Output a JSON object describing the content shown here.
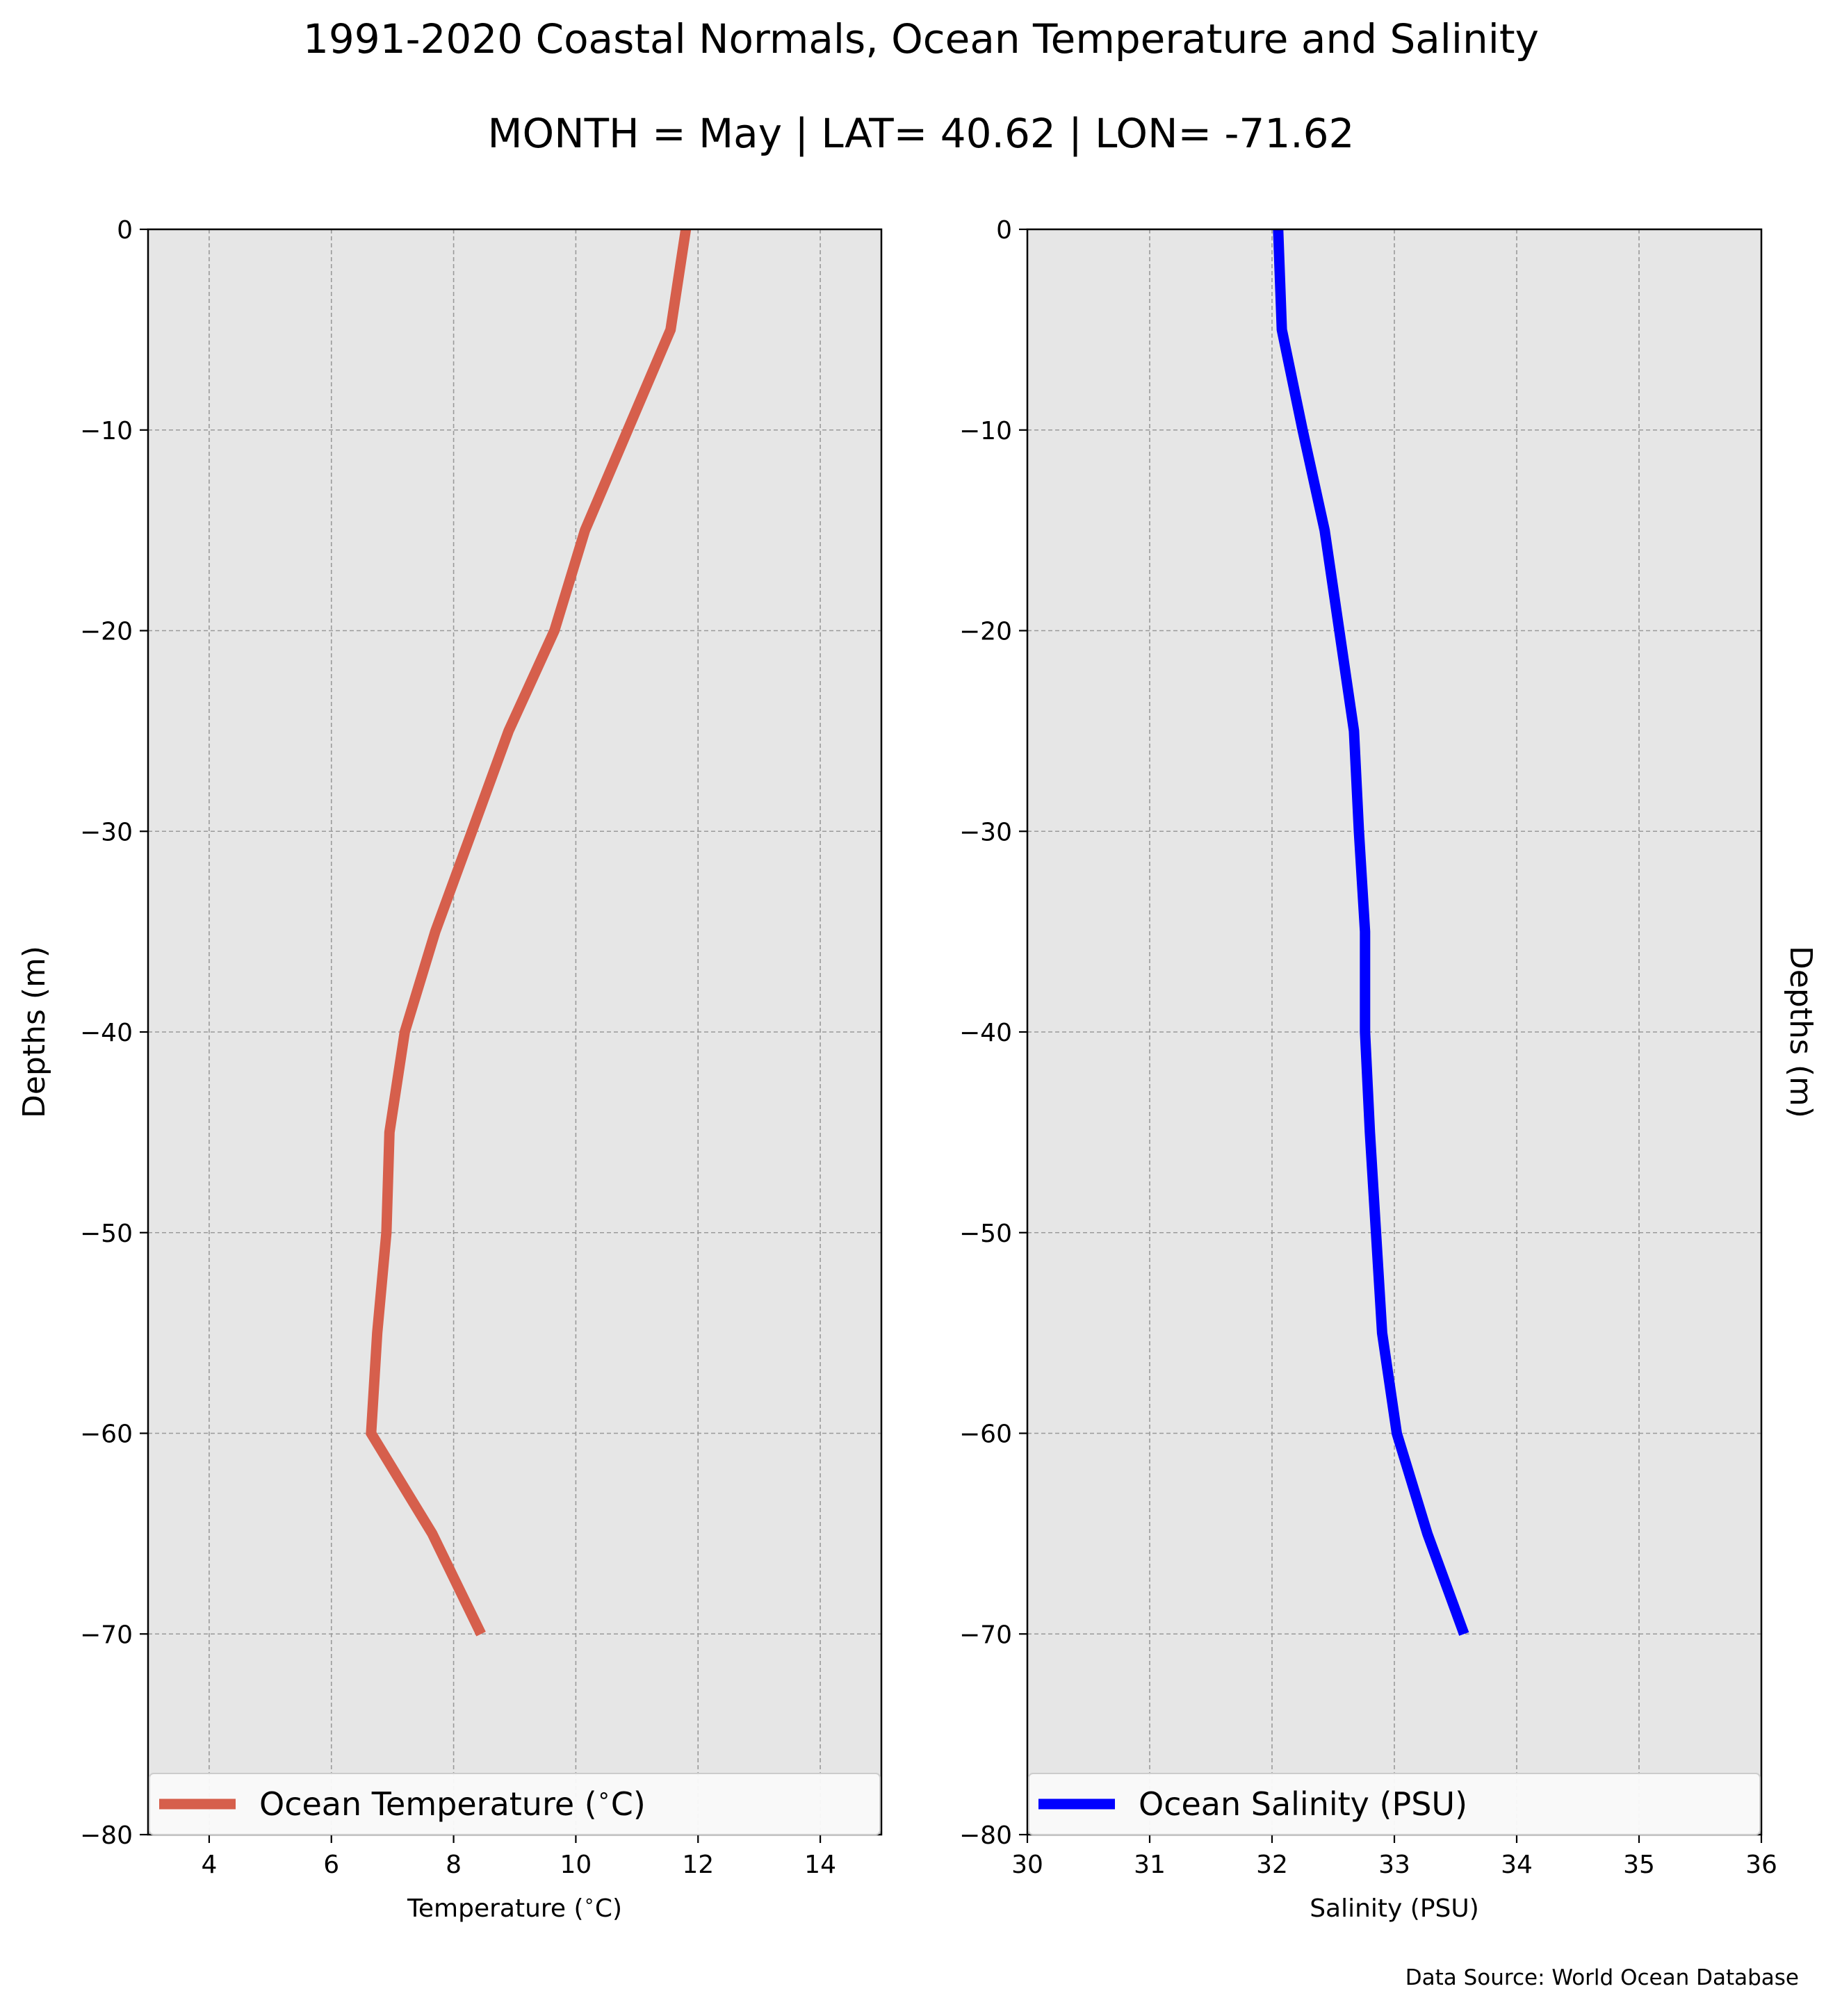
{
  "figure": {
    "title": "1991-2020 Coastal Normals, Ocean Temperature and Salinity",
    "subtitle": "MONTH = May | LAT= 40.62 | LON= -71.62",
    "source_note": "Data Source: World Ocean Database",
    "background": "#ffffff",
    "plot_background": "#e6e6e6",
    "grid_color": "#9a9a9a"
  },
  "chart_data": [
    {
      "type": "line",
      "xlabel": "Temperature ($^\\circ$C)",
      "xlabel_text": "Temperature (",
      "xlabel_sup": "∘",
      "xlabel_tail": "C)",
      "ylabel": "Depths (m)",
      "ylabel_side": "left",
      "xlim": [
        3,
        15
      ],
      "ylim": [
        -80,
        0
      ],
      "xticks": [
        4,
        6,
        8,
        10,
        12,
        14
      ],
      "xtick_labels": [
        "4",
        "6",
        "8",
        "10",
        "12",
        "14"
      ],
      "yticks": [
        0,
        -10,
        -20,
        -30,
        -40,
        -50,
        -60,
        -70,
        -80
      ],
      "ytick_labels": [
        "0",
        "−10",
        "−20",
        "−30",
        "−40",
        "−50",
        "−60",
        "−70",
        "−80"
      ],
      "grid": true,
      "legend_placement": "lower center",
      "series": [
        {
          "name": "Ocean Temperature ($^\\circ$C)",
          "legend_text": "Ocean Temperature (",
          "legend_sup": "∘",
          "legend_tail": "C)",
          "color": "#d65f4c",
          "x": [
            11.8,
            11.55,
            10.85,
            10.15,
            9.65,
            8.9,
            8.3,
            7.7,
            7.2,
            6.95,
            6.9,
            6.75,
            6.65,
            7.65,
            8.45
          ],
          "y": [
            0,
            -5,
            -10,
            -15,
            -20,
            -25,
            -30,
            -35,
            -40,
            -45,
            -50,
            -55,
            -60,
            -65,
            -70
          ]
        }
      ]
    },
    {
      "type": "line",
      "xlabel": "Salinity (PSU)",
      "ylabel": "Depths (m)",
      "ylabel_side": "right",
      "xlim": [
        30,
        36
      ],
      "ylim": [
        -80,
        0
      ],
      "xticks": [
        30,
        31,
        32,
        33,
        34,
        35,
        36
      ],
      "xtick_labels": [
        "30",
        "31",
        "32",
        "33",
        "34",
        "35",
        "36"
      ],
      "yticks": [
        0,
        -10,
        -20,
        -30,
        -40,
        -50,
        -60,
        -70,
        -80
      ],
      "ytick_labels": [
        "0",
        "−10",
        "−20",
        "−30",
        "−40",
        "−50",
        "−60",
        "−70",
        "−80"
      ],
      "grid": true,
      "legend_placement": "lower center",
      "series": [
        {
          "name": "Ocean Salinity (PSU)",
          "legend_text": "Ocean Salinity (PSU)",
          "legend_sup": "",
          "legend_tail": "",
          "color": "#0000ff",
          "x": [
            32.05,
            32.08,
            32.25,
            32.43,
            32.55,
            32.67,
            32.71,
            32.76,
            32.76,
            32.8,
            32.85,
            32.9,
            33.02,
            33.27,
            33.57
          ],
          "y": [
            0,
            -5,
            -10,
            -15,
            -20,
            -25,
            -30,
            -35,
            -40,
            -45,
            -50,
            -55,
            -60,
            -65,
            -70
          ]
        }
      ]
    }
  ]
}
